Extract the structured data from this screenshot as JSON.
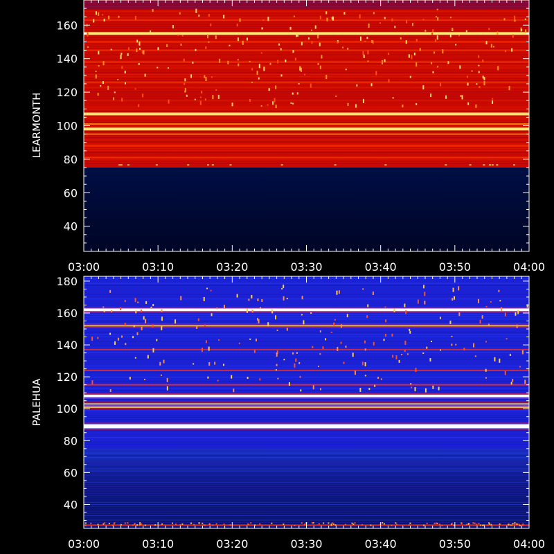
{
  "chart_data": [
    {
      "type": "heatmap",
      "ylabel": "LEARMONTH",
      "x_ticks": [
        "03:00",
        "03:10",
        "03:20",
        "03:30",
        "03:40",
        "03:50",
        "04:00"
      ],
      "xlim": [
        "03:00",
        "04:00"
      ],
      "y_ticks": [
        40,
        60,
        80,
        100,
        120,
        140,
        160
      ],
      "ylim": [
        25,
        175
      ],
      "data_cutoff": 75,
      "colors": {
        "background": "#cc0a00",
        "no_data": "#000a3a",
        "bright": "#ffee66"
      },
      "bright_bands": [
        {
          "y": 155,
          "intensity": 1.0
        },
        {
          "y": 107,
          "intensity": 0.9
        },
        {
          "y": 101,
          "intensity": 0.8
        },
        {
          "y": 98,
          "intensity": 1.0
        },
        {
          "y": 95,
          "intensity": 0.6
        },
        {
          "y": 88,
          "intensity": 0.5
        },
        {
          "y": 81,
          "intensity": 0.5
        },
        {
          "y": 145,
          "intensity": 0.45
        },
        {
          "y": 138,
          "intensity": 0.55
        },
        {
          "y": 163,
          "intensity": 0.4
        },
        {
          "y": 126,
          "intensity": 0.35
        },
        {
          "y": 150,
          "intensity": 0.3
        }
      ]
    },
    {
      "type": "heatmap",
      "ylabel": "PALEHUA",
      "x_ticks": [
        "03:00",
        "03:10",
        "03:20",
        "03:30",
        "03:40",
        "03:50",
        "04:00"
      ],
      "xlim": [
        "03:00",
        "04:00"
      ],
      "y_ticks": [
        40,
        60,
        80,
        100,
        120,
        140,
        160,
        180
      ],
      "ylim": [
        25,
        183
      ],
      "colors": {
        "background": "#1a22d8",
        "low": "#00004a",
        "bright": "#ffffff"
      },
      "bright_bands": [
        {
          "y": 162,
          "intensity": 1.0
        },
        {
          "y": 152,
          "intensity": 0.75
        },
        {
          "y": 115,
          "intensity": 0.6
        },
        {
          "y": 108,
          "intensity": 0.95
        },
        {
          "y": 103,
          "intensity": 0.8
        },
        {
          "y": 101,
          "intensity": 0.9
        },
        {
          "y": 89,
          "intensity": 1.0
        },
        {
          "y": 124,
          "intensity": 0.4
        },
        {
          "y": 137,
          "intensity": 0.35
        },
        {
          "y": 27,
          "intensity": 0.5
        }
      ]
    }
  ]
}
